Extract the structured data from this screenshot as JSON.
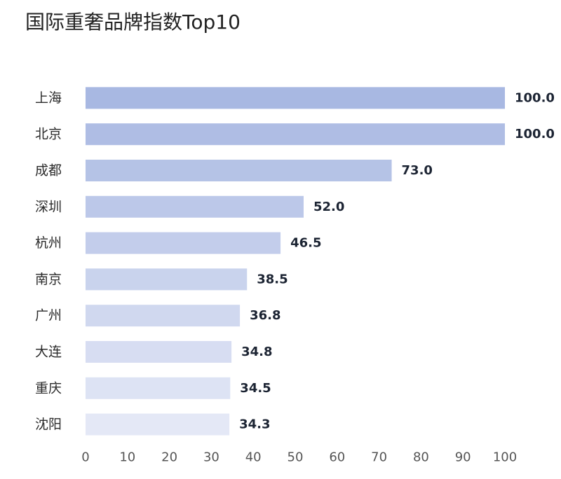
{
  "chart_data": {
    "type": "bar",
    "orientation": "horizontal",
    "title": "国际重奢品牌指数Top10",
    "categories": [
      "上海",
      "北京",
      "成都",
      "深圳",
      "杭州",
      "南京",
      "广州",
      "大连",
      "重庆",
      "沈阳"
    ],
    "values": [
      100.0,
      100.0,
      73.0,
      52.0,
      46.5,
      38.5,
      36.8,
      34.8,
      34.5,
      34.3
    ],
    "value_labels": [
      "100.0",
      "100.0",
      "73.0",
      "52.0",
      "46.5",
      "38.5",
      "36.8",
      "34.8",
      "34.5",
      "34.3"
    ],
    "xlim": [
      0,
      100
    ],
    "xticks": [
      "0",
      "10",
      "20",
      "30",
      "40",
      "50",
      "60",
      "70",
      "80",
      "90",
      "100"
    ],
    "grid": false,
    "bar_color_start": "#a8b8e2",
    "bar_color_end": "#e4e8f6"
  }
}
